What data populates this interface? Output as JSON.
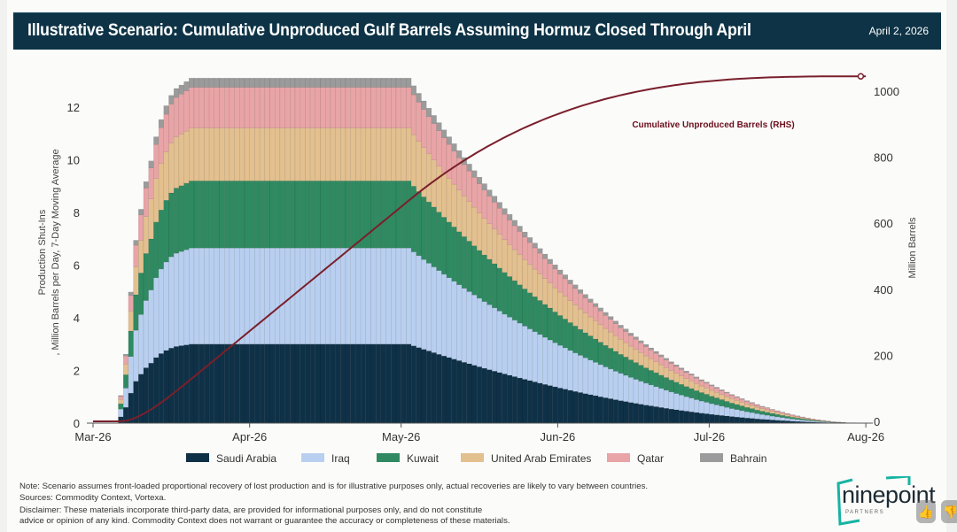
{
  "header": {
    "title": "Illustrative Scenario: Cumulative Unproduced Gulf Barrels Assuming Hormuz Closed Through April",
    "date": "April 2, 2026"
  },
  "chart_data": {
    "type": "bar",
    "stacked": true,
    "title": "Illustrative Scenario: Cumulative Unproduced Gulf Barrels Assuming Hormuz Closed Through April",
    "ylabel": "Production Shut-Ins\n, Million Barrels per Day, 7-Day Moving Average",
    "ylabel_lines": [
      "Production Shut-Ins",
      ", Million Barrels per Day, 7-Day Moving Average"
    ],
    "y2label": "Million Barrels",
    "ylim": [
      0,
      13.5
    ],
    "y2lim": [
      0,
      1100
    ],
    "yticks": [
      "0",
      "2",
      "4",
      "6",
      "8",
      "10",
      "12"
    ],
    "y2ticks": [
      "0",
      "200",
      "400",
      "600",
      "800",
      "1000"
    ],
    "xticks": [
      "Mar-26",
      "Apr-26",
      "May-26",
      "Jun-26",
      "Jul-26",
      "Aug-26"
    ],
    "xtick_days": [
      0,
      31,
      61,
      92,
      122,
      153
    ],
    "first_bar_day": 5,
    "x_unit": "days since 2026-03-01 (daily bars)",
    "legend_position": "bottom",
    "series": [
      {
        "name": "Saudi Arabia",
        "plateau_mbd": 3.0,
        "color": "#0f3147"
      },
      {
        "name": "Iraq",
        "plateau_mbd": 3.65,
        "color": "#b9cff0"
      },
      {
        "name": "Kuwait",
        "plateau_mbd": 2.55,
        "color": "#2f8a61"
      },
      {
        "name": "United Arab Emirates",
        "plateau_mbd": 2.0,
        "color": "#e3c08f"
      },
      {
        "name": "Qatar",
        "plateau_mbd": 1.55,
        "color": "#e8a4a6"
      },
      {
        "name": "Bahrain",
        "plateau_mbd": 0.35,
        "color": "#9b9b9b"
      }
    ],
    "daily_fraction_of_plateau": [
      0.08,
      0.2,
      0.38,
      0.53,
      0.62,
      0.7,
      0.76,
      0.83,
      0.88,
      0.92,
      0.95,
      0.97,
      0.98,
      0.99,
      1,
      1,
      1,
      1,
      1,
      1,
      1,
      1,
      1,
      1,
      1,
      1,
      1,
      1,
      1,
      1,
      1,
      1,
      1,
      1,
      1,
      1,
      1,
      1,
      1,
      1,
      1,
      1,
      1,
      1,
      1,
      1,
      1,
      1,
      1,
      1,
      1,
      1,
      1,
      1,
      1,
      1,
      1,
      1,
      0.978,
      0.956,
      0.934,
      0.913,
      0.892,
      0.871,
      0.85,
      0.83,
      0.81,
      0.79,
      0.77,
      0.751,
      0.732,
      0.713,
      0.694,
      0.676,
      0.658,
      0.64,
      0.622,
      0.605,
      0.588,
      0.571,
      0.554,
      0.538,
      0.522,
      0.506,
      0.49,
      0.475,
      0.459,
      0.444,
      0.43,
      0.415,
      0.401,
      0.387,
      0.373,
      0.36,
      0.347,
      0.334,
      0.321,
      0.309,
      0.296,
      0.284,
      0.273,
      0.261,
      0.25,
      0.239,
      0.228,
      0.218,
      0.208,
      0.198,
      0.188,
      0.178,
      0.169,
      0.16,
      0.151,
      0.143,
      0.134,
      0.126,
      0.119,
      0.111,
      0.104,
      0.097,
      0.09,
      0.083,
      0.077,
      0.071,
      0.065,
      0.06,
      0.054,
      0.049,
      0.045,
      0.04,
      0.036,
      0.032,
      0.028,
      0.024,
      0.021,
      0.018,
      0.015,
      0.012,
      0.01,
      0.008,
      0.006,
      0.004,
      0.003,
      0.002,
      0.001,
      0.001,
      0,
      0
    ],
    "line": {
      "name": "Cumulative Unproduced Barrels (RHS)",
      "label": "Cumulative Unproduced Barrels (RHS)",
      "axis": "right",
      "color": "#7a1f2b",
      "end_value_mb": 1045
    }
  },
  "footer": {
    "note": "Note: Scenario assumes front-loaded proportional recovery of lost production and is for illustrative purposes only, actual recoveries are likely to vary between countries.",
    "sources": "Sources: Commodity Context, Vortexa.",
    "disclaimer_1": "Disclaimer: These materials incorporate third-party data, are provided for informational purposes only, and do not constitute",
    "disclaimer_2": "advice or opinion of any kind. Commodity Context does not warrant or guarantee the accuracy or completeness of these materials."
  },
  "logo": {
    "word": "ninepoint",
    "sub": "PARTNERS"
  }
}
